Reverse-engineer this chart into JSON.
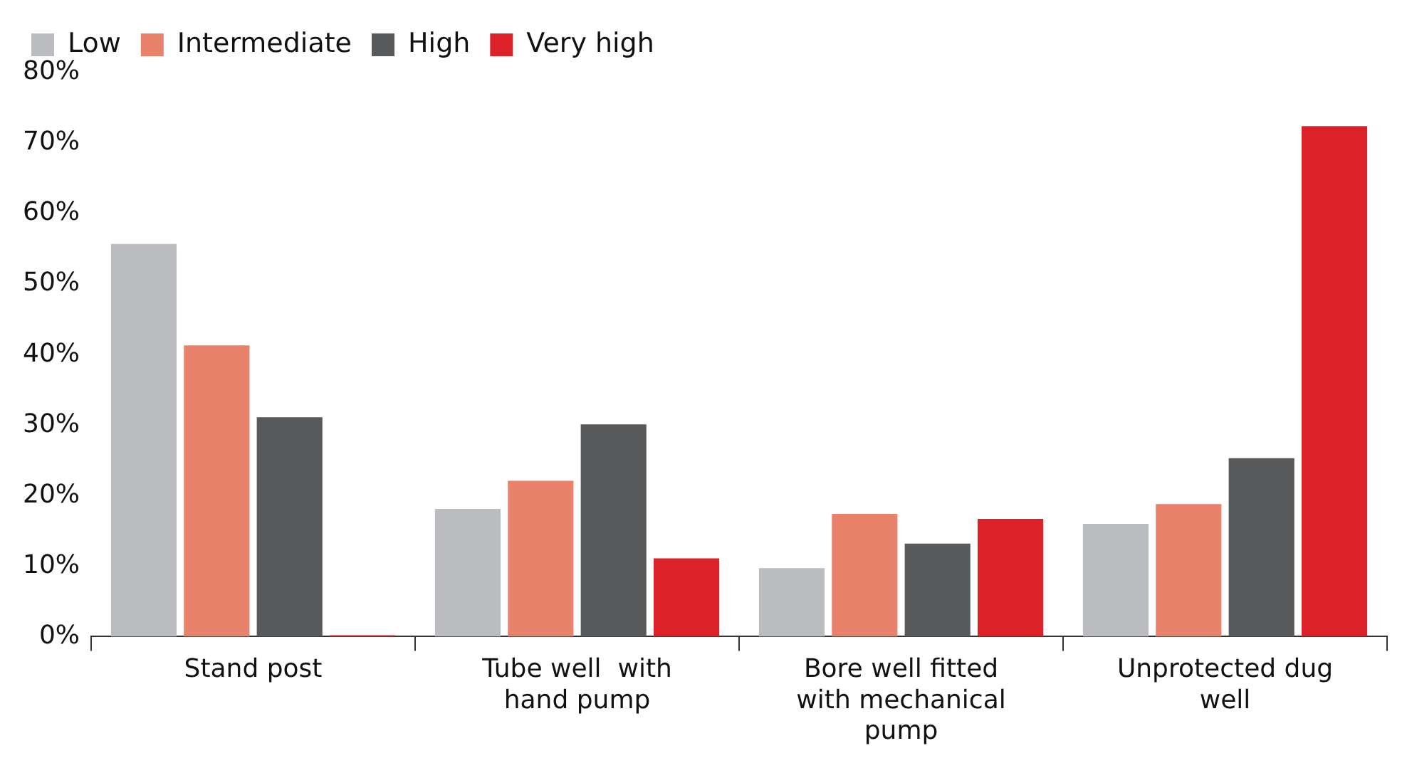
{
  "chart_data": {
    "type": "bar",
    "categories": [
      "Stand post",
      "Tube well  with hand pump",
      "Bore well fitted with mechanical pump",
      "Unprotected dug well"
    ],
    "series": [
      {
        "name": "Low",
        "color": "#bbbcbf",
        "values": [
          55.7,
          18.1,
          9.7,
          16.0
        ]
      },
      {
        "name": "Intermediate",
        "color": "#e8826a",
        "values": [
          41.3,
          22.1,
          17.4,
          18.8
        ]
      },
      {
        "name": "High",
        "color": "#58595b",
        "values": [
          31.1,
          30.1,
          13.2,
          25.3
        ]
      },
      {
        "name": "Very high",
        "color": "#dc2229",
        "values": [
          0,
          11.1,
          16.7,
          72.4
        ]
      }
    ],
    "ylim": [
      0,
      80
    ],
    "yticks": [
      {
        "value": 0,
        "label": "0%"
      },
      {
        "value": 10,
        "label": "10%"
      },
      {
        "value": 20,
        "label": "20%"
      },
      {
        "value": 30,
        "label": "30%"
      },
      {
        "value": 40,
        "label": "40%"
      },
      {
        "value": 50,
        "label": "50%"
      },
      {
        "value": 60,
        "label": "60%"
      },
      {
        "value": 70,
        "label": "70%"
      },
      {
        "value": 80,
        "label": "80%"
      }
    ],
    "grid": false,
    "legend": "top left"
  }
}
